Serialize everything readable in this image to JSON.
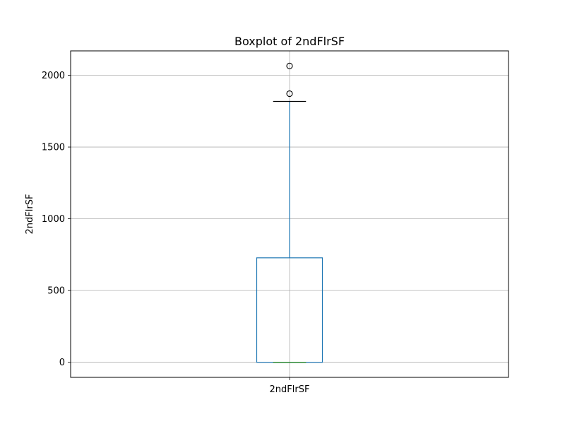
{
  "chart_data": {
    "type": "box",
    "title": "Boxplot of 2ndFlrSF",
    "xlabel": "",
    "ylabel": "2ndFlrSF",
    "categories": [
      "2ndFlrSF"
    ],
    "ylim": [
      -105,
      2170
    ],
    "yticks": [
      0,
      500,
      1000,
      1500,
      2000
    ],
    "grid": true,
    "boxes": [
      {
        "name": "2ndFlrSF",
        "whisker_low": 0,
        "q1": 0,
        "median": 0,
        "q3": 728,
        "whisker_high": 1818,
        "outliers": [
          1872,
          2065
        ]
      }
    ],
    "colors": {
      "box": "#1f77b4",
      "whisker": "#1f77b4",
      "cap": "#000000",
      "median": "#2ca02c",
      "outlier": "#000000",
      "grid": "#b0b0b0"
    }
  }
}
